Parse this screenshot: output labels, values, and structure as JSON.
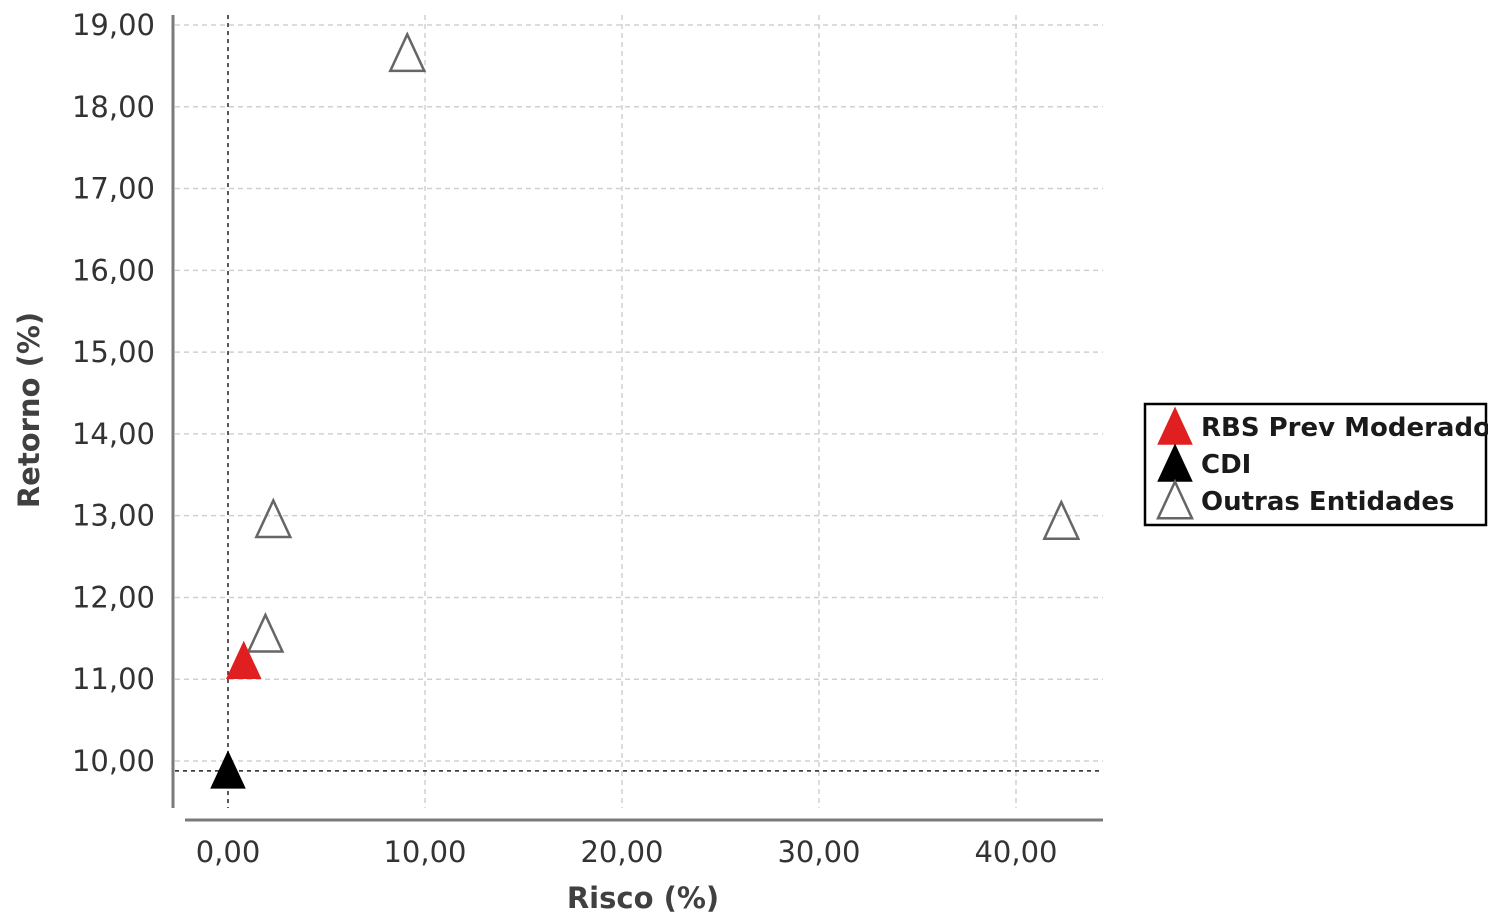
{
  "chart_data": {
    "type": "scatter",
    "xlabel": "Risco (%)",
    "ylabel": "Retorno (%)",
    "xlim": [
      -2.2,
      44.2
    ],
    "ylim": [
      9.45,
      19.2
    ],
    "x_ticks": [
      0,
      10,
      20,
      30,
      40
    ],
    "x_tick_labels": [
      "0,00",
      "10,00",
      "20,00",
      "30,00",
      "40,00"
    ],
    "y_ticks": [
      10,
      11,
      12,
      13,
      14,
      15,
      16,
      17,
      18,
      19
    ],
    "y_tick_labels": [
      "10,00",
      "11,00",
      "12,00",
      "13,00",
      "14,00",
      "15,00",
      "16,00",
      "17,00",
      "18,00",
      "19,00"
    ],
    "grid": true,
    "reference_lines": {
      "x": 0,
      "y": 9.88
    },
    "legend_position": "right",
    "series": [
      {
        "name": "RBS Prev Moderado",
        "marker": "filled-triangle",
        "color": "#e02020",
        "points": [
          {
            "x": 0.8,
            "y": 11.22
          }
        ]
      },
      {
        "name": "CDI",
        "marker": "filled-triangle",
        "color": "#000000",
        "points": [
          {
            "x": 0.0,
            "y": 9.88
          }
        ]
      },
      {
        "name": "Outras Entidades",
        "marker": "open-triangle",
        "color": "#666666",
        "points": [
          {
            "x": 9.1,
            "y": 18.65
          },
          {
            "x": 2.3,
            "y": 12.95
          },
          {
            "x": 1.9,
            "y": 11.55
          },
          {
            "x": 42.3,
            "y": 12.93
          }
        ]
      }
    ]
  }
}
